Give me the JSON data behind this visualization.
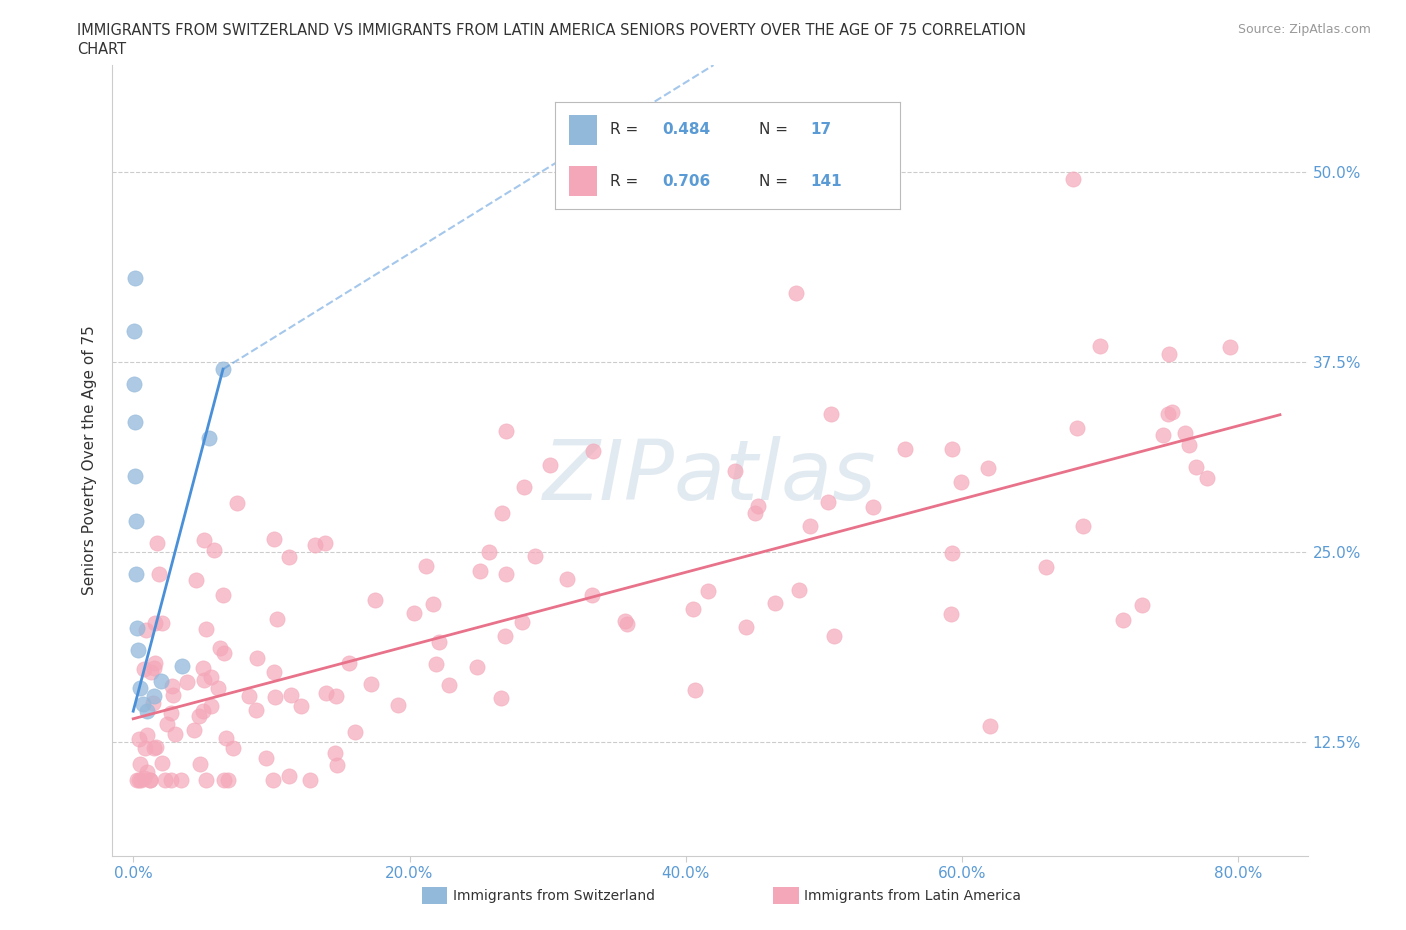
{
  "title_line1": "IMMIGRANTS FROM SWITZERLAND VS IMMIGRANTS FROM LATIN AMERICA SENIORS POVERTY OVER THE AGE OF 75 CORRELATION",
  "title_line2": "CHART",
  "source": "Source: ZipAtlas.com",
  "ylabel": "Seniors Poverty Over the Age of 75",
  "xtick_labels": [
    "0.0%",
    "20.0%",
    "40.0%",
    "60.0%",
    "80.0%"
  ],
  "xtick_vals": [
    0.0,
    20.0,
    40.0,
    60.0,
    80.0
  ],
  "ytick_right_labels": [
    "12.5%",
    "25.0%",
    "37.5%",
    "50.0%"
  ],
  "ytick_right_vals": [
    12.5,
    25.0,
    37.5,
    50.0
  ],
  "ylim": [
    5.0,
    57.0
  ],
  "xlim": [
    -1.5,
    85.0
  ],
  "switzerland_color": "#92b8da",
  "latin_america_color": "#f4a7b9",
  "swiss_trend_color": "#4a90d9",
  "la_trend_color": "#e8728a",
  "watermark": "ZIPatlas",
  "watermark_color": "#d0dde8",
  "tick_color": "#5b9bd5",
  "legend_label_1": "Immigrants from Switzerland",
  "legend_label_2": "Immigrants from Latin America",
  "r_n_color": "#5b9bd5",
  "sw_solid_x0": 0.0,
  "sw_solid_y0": 14.5,
  "sw_solid_x1": 6.5,
  "sw_solid_y1": 37.0,
  "sw_dash_x0": 6.5,
  "sw_dash_y0": 37.0,
  "sw_dash_x1": 42.0,
  "sw_dash_y1": 57.0,
  "la_trend_x0": 0.0,
  "la_trend_y0": 14.0,
  "la_trend_x1": 83.0,
  "la_trend_y1": 34.0
}
